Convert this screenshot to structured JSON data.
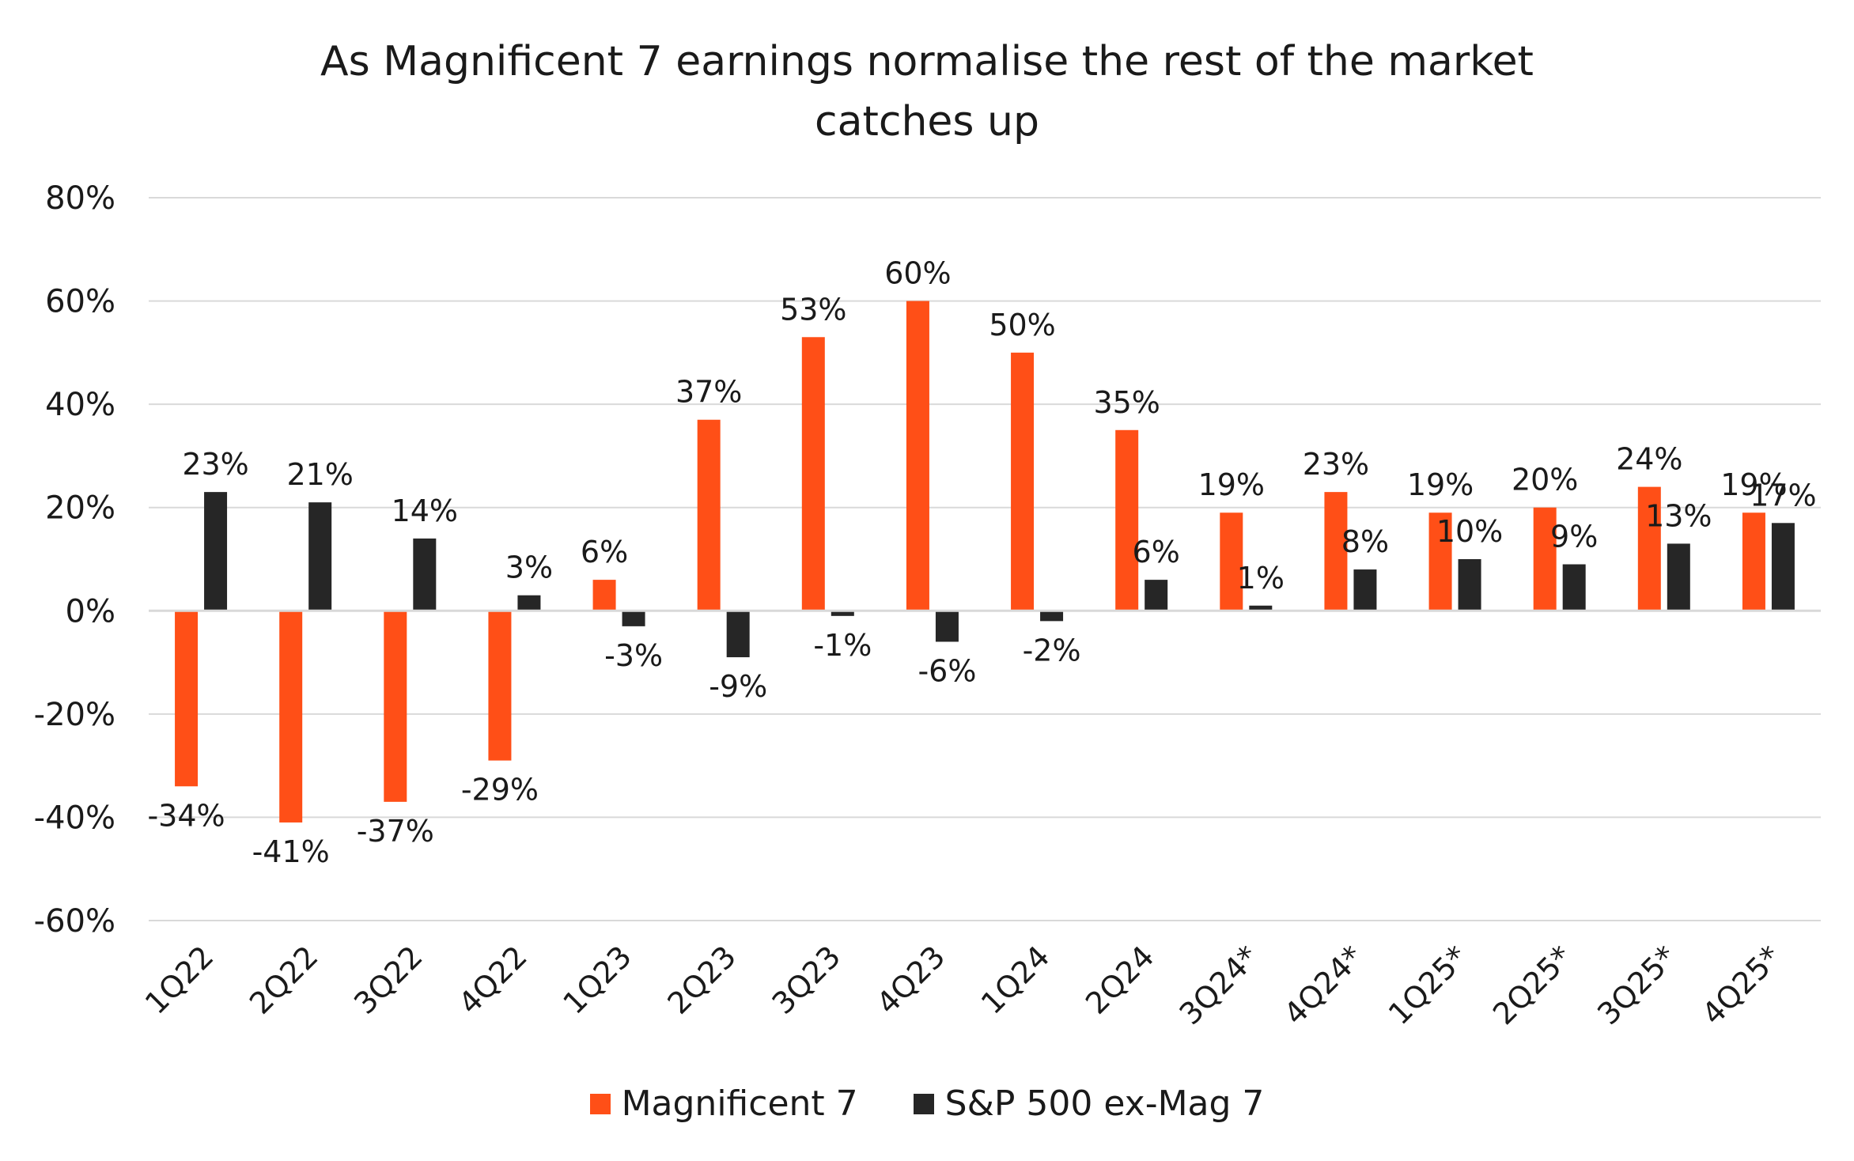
{
  "colors": {
    "mag7": "#FF4F17",
    "sp500_ex": "#262626",
    "grid": "#D9D9D9",
    "text": "#1a1a1a"
  },
  "chart_data": {
    "type": "bar",
    "title_lines": [
      "As Magnificent 7 earnings normalise the rest of the market",
      "catches up"
    ],
    "categories": [
      "1Q22",
      "2Q22",
      "3Q22",
      "4Q22",
      "1Q23",
      "2Q23",
      "3Q23",
      "4Q23",
      "1Q24",
      "2Q24",
      "3Q24*",
      "4Q24*",
      "1Q25*",
      "2Q25*",
      "3Q25*",
      "4Q25*"
    ],
    "series": [
      {
        "name": "Magnificent 7",
        "values": [
          -34,
          -41,
          -37,
          -29,
          6,
          37,
          53,
          60,
          50,
          35,
          19,
          23,
          19,
          20,
          24,
          19
        ]
      },
      {
        "name": "S&P 500 ex-Mag 7",
        "values": [
          23,
          21,
          14,
          3,
          -3,
          -9,
          -1,
          -6,
          -2,
          6,
          1,
          8,
          10,
          9,
          13,
          17
        ]
      }
    ],
    "ylim": [
      -60,
      80
    ],
    "yticks": [
      80,
      60,
      40,
      20,
      0,
      -20,
      -40,
      -60
    ],
    "ytick_labels": [
      "80%",
      "60%",
      "40%",
      "20%",
      "0%",
      "-20%",
      "-40%",
      "-60%"
    ],
    "value_suffix": "%",
    "grid": true,
    "legend_position": "bottom"
  }
}
